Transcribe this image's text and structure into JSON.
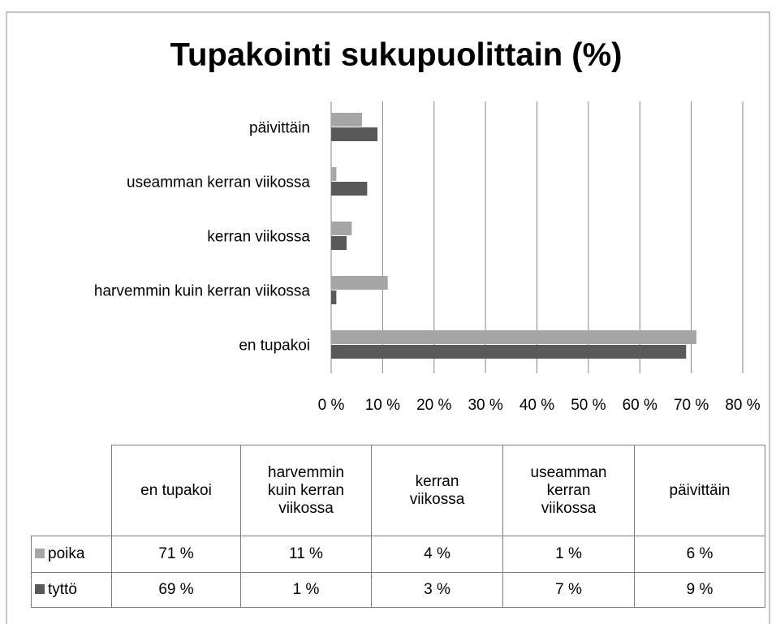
{
  "chart_data": {
    "type": "bar",
    "orientation": "horizontal",
    "title": "Tupakointi sukupuolittain (%)",
    "categories": [
      "en tupakoi",
      "harvemmin kuin kerran viikossa",
      "kerran viikossa",
      "useamman kerran viikossa",
      "päivittäin"
    ],
    "series": [
      {
        "name": "poika",
        "color": "#a6a6a6",
        "values": [
          71,
          11,
          4,
          1,
          6
        ],
        "value_labels": [
          "71 %",
          "11 %",
          "4 %",
          "1 %",
          "6 %"
        ]
      },
      {
        "name": "tyttö",
        "color": "#595959",
        "values": [
          69,
          1,
          3,
          7,
          9
        ],
        "value_labels": [
          "69 %",
          "1 %",
          "3 %",
          "7 %",
          "9 %"
        ]
      }
    ],
    "xlim": [
      0,
      80
    ],
    "xticks": [
      {
        "value": 0,
        "label": "0 %"
      },
      {
        "value": 10,
        "label": "10 %"
      },
      {
        "value": 20,
        "label": "20 %"
      },
      {
        "value": 30,
        "label": "30 %"
      },
      {
        "value": 40,
        "label": "40 %"
      },
      {
        "value": 50,
        "label": "50 %"
      },
      {
        "value": 60,
        "label": "60 %"
      },
      {
        "value": 70,
        "label": "70 %"
      },
      {
        "value": 80,
        "label": "80 %"
      }
    ],
    "grid": true,
    "data_table": true
  }
}
